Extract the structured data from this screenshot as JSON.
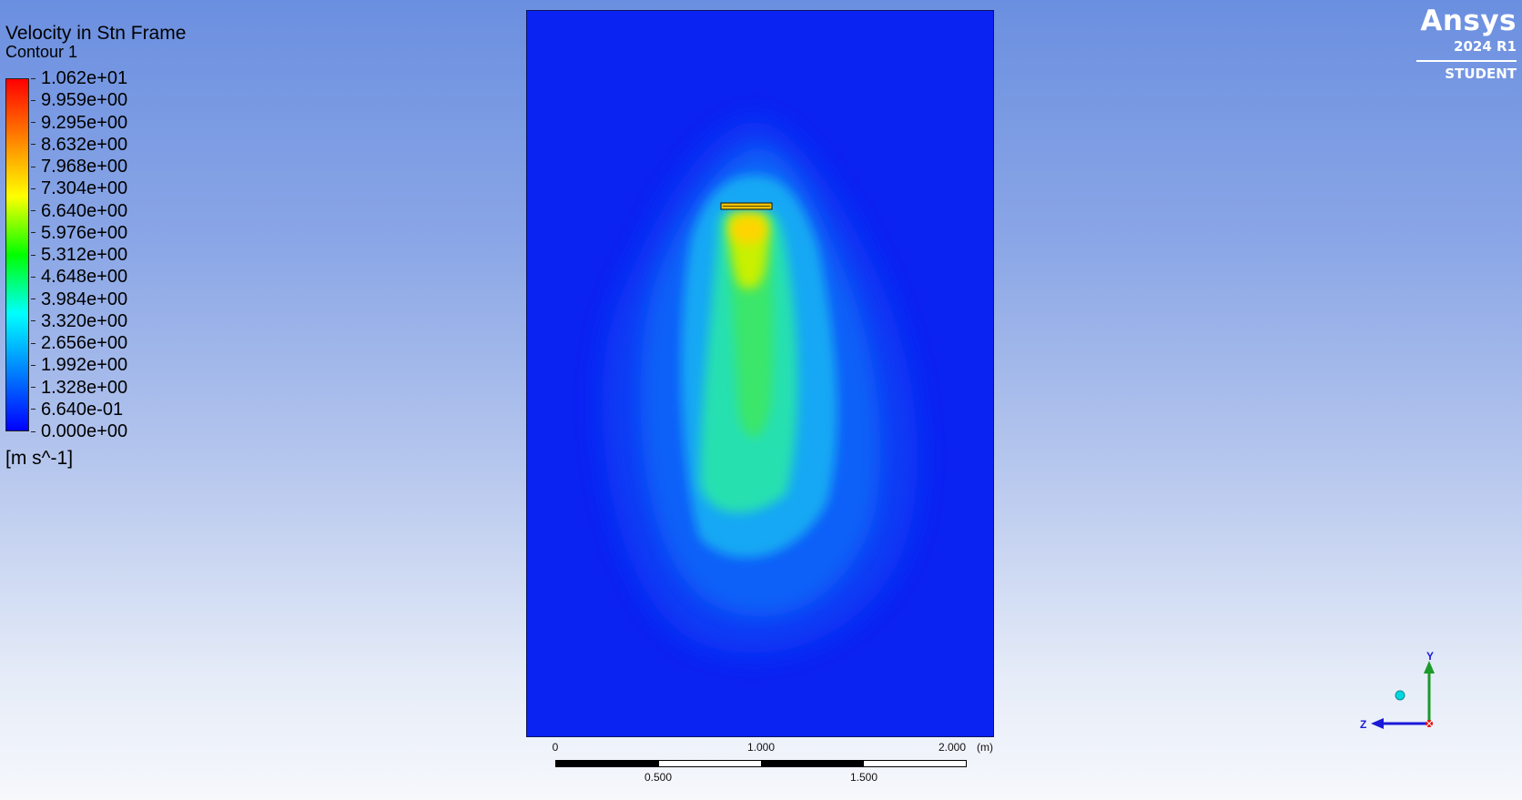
{
  "legend": {
    "title": "Velocity in Stn Frame",
    "subtitle": "Contour 1",
    "units": "[m s^-1]",
    "ticks": [
      "1.062e+01",
      "9.959e+00",
      "9.295e+00",
      "8.632e+00",
      "7.968e+00",
      "7.304e+00",
      "6.640e+00",
      "5.976e+00",
      "5.312e+00",
      "4.648e+00",
      "3.984e+00",
      "3.320e+00",
      "2.656e+00",
      "1.992e+00",
      "1.328e+00",
      "6.640e-01",
      "0.000e+00"
    ],
    "colormap": [
      "#ff0000",
      "#ff8000",
      "#ffff00",
      "#00ff00",
      "#00ffff",
      "#0080ff",
      "#0000ff"
    ]
  },
  "scale": {
    "labels_top": [
      "0",
      "1.000",
      "2.000"
    ],
    "unit": "(m)",
    "labels_bottom": [
      "0.500",
      "1.500"
    ]
  },
  "logo": {
    "name": "Ansys",
    "version": "2024 R1",
    "edition": "STUDENT"
  },
  "triad": {
    "y_label": "Y",
    "z_label": "Z"
  },
  "colors": {
    "background_domain": "#0a22f2",
    "axis_y": "#1a9b2a",
    "axis_z": "#1a1ad8",
    "axis_x": "#e01010",
    "origin_ball": "#00d8e0"
  }
}
